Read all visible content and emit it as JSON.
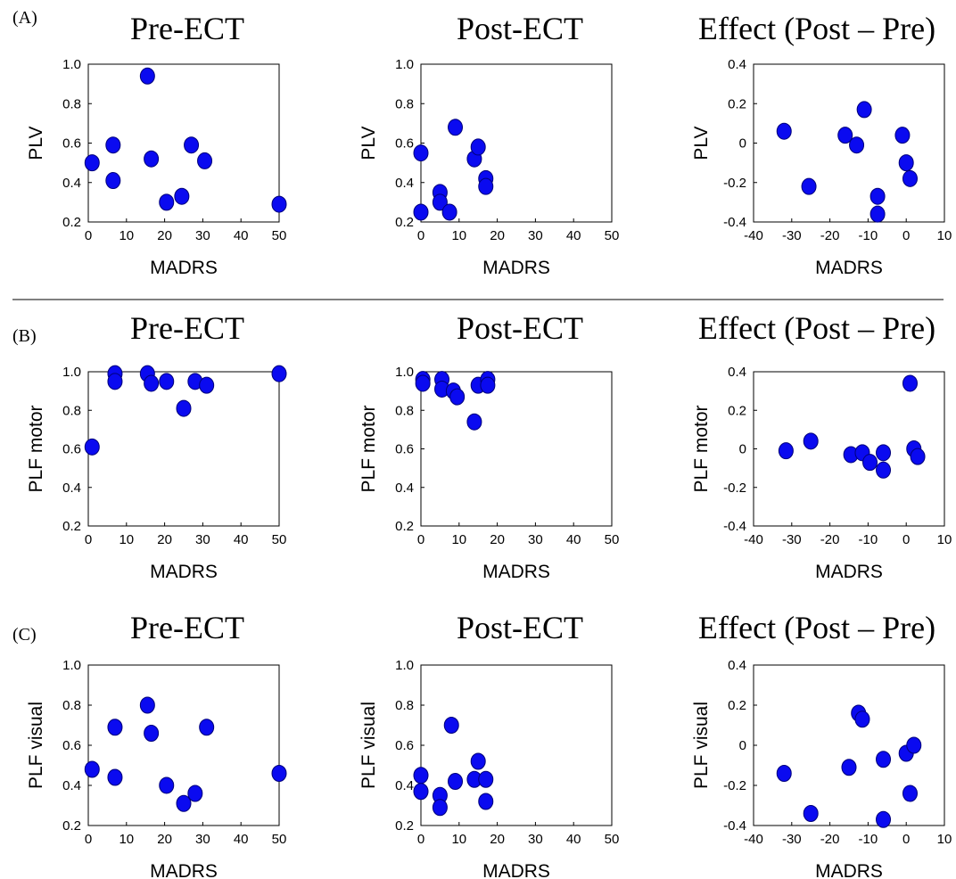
{
  "panel_labels": [
    "(A)",
    "(B)",
    "(C)"
  ],
  "colors": {
    "marker_fill": "#0a0af0",
    "marker_stroke": "#00007a",
    "axis": "#000000",
    "separator": "#000000"
  },
  "chart_data": [
    {
      "type": "scatter",
      "row": "A",
      "col": 0,
      "title": "Pre-ECT",
      "xlabel": "MADRS",
      "ylabel": "PLV",
      "xlim": [
        0,
        50
      ],
      "ylim": [
        0.2,
        1.0
      ],
      "xticks": [
        0,
        10,
        20,
        30,
        40,
        50
      ],
      "yticks": [
        0.2,
        0.4,
        0.6,
        0.8,
        1.0
      ],
      "x": [
        1,
        6.5,
        6.5,
        15.5,
        16.5,
        20.5,
        24.5,
        27,
        30.5,
        50
      ],
      "y": [
        0.5,
        0.59,
        0.41,
        0.94,
        0.52,
        0.3,
        0.33,
        0.59,
        0.51,
        0.29
      ]
    },
    {
      "type": "scatter",
      "row": "A",
      "col": 1,
      "title": "Post-ECT",
      "xlabel": "MADRS",
      "ylabel": "PLV",
      "xlim": [
        0,
        50
      ],
      "ylim": [
        0.2,
        1.0
      ],
      "xticks": [
        0,
        10,
        20,
        30,
        40,
        50
      ],
      "yticks": [
        0.2,
        0.4,
        0.6,
        0.8,
        1.0
      ],
      "x": [
        0,
        0,
        5,
        5,
        7.5,
        9,
        14,
        15,
        17,
        17
      ],
      "y": [
        0.55,
        0.25,
        0.35,
        0.3,
        0.25,
        0.68,
        0.52,
        0.58,
        0.42,
        0.38
      ]
    },
    {
      "type": "scatter",
      "row": "A",
      "col": 2,
      "title": "Effect (Post – Pre)",
      "xlabel": "MADRS",
      "ylabel": "PLV",
      "xlim": [
        -40,
        10
      ],
      "ylim": [
        -0.4,
        0.4
      ],
      "xticks": [
        -40,
        -30,
        -20,
        -10,
        0,
        10
      ],
      "yticks": [
        -0.4,
        -0.2,
        0,
        0.2,
        0.4
      ],
      "x": [
        -32,
        -25.5,
        -16,
        -13,
        -11,
        -7.5,
        -7.5,
        -1,
        0,
        1
      ],
      "y": [
        0.06,
        -0.22,
        0.04,
        -0.01,
        0.17,
        -0.27,
        -0.36,
        0.04,
        -0.1,
        -0.18
      ]
    },
    {
      "type": "scatter",
      "row": "B",
      "col": 0,
      "title": "Pre-ECT",
      "xlabel": "MADRS",
      "ylabel": "PLF motor",
      "xlim": [
        0,
        50
      ],
      "ylim": [
        0.2,
        1.0
      ],
      "xticks": [
        0,
        10,
        20,
        30,
        40,
        50
      ],
      "yticks": [
        0.2,
        0.4,
        0.6,
        0.8,
        1.0
      ],
      "x": [
        1,
        7,
        7,
        15.5,
        16.5,
        20.5,
        25,
        28,
        31,
        50
      ],
      "y": [
        0.61,
        0.99,
        0.95,
        0.99,
        0.94,
        0.95,
        0.81,
        0.95,
        0.93,
        0.99
      ]
    },
    {
      "type": "scatter",
      "row": "B",
      "col": 1,
      "title": "Post-ECT",
      "xlabel": "MADRS",
      "ylabel": "PLF motor",
      "xlim": [
        0,
        50
      ],
      "ylim": [
        0.2,
        1.0
      ],
      "xticks": [
        0,
        10,
        20,
        30,
        40,
        50
      ],
      "yticks": [
        0.2,
        0.4,
        0.6,
        0.8,
        1.0
      ],
      "x": [
        0.5,
        0.5,
        5.5,
        5.5,
        8.5,
        9.5,
        14,
        15,
        17.5,
        17.5
      ],
      "y": [
        0.96,
        0.94,
        0.96,
        0.91,
        0.9,
        0.87,
        0.74,
        0.93,
        0.96,
        0.93
      ]
    },
    {
      "type": "scatter",
      "row": "B",
      "col": 2,
      "title": "Effect (Post – Pre)",
      "xlabel": "MADRS",
      "ylabel": "PLF motor",
      "xlim": [
        -40,
        10
      ],
      "ylim": [
        -0.4,
        0.4
      ],
      "xticks": [
        -40,
        -30,
        -20,
        -10,
        0,
        10
      ],
      "yticks": [
        -0.4,
        -0.2,
        0,
        0.2,
        0.4
      ],
      "x": [
        -31.5,
        -25,
        -14.5,
        -11.5,
        -9.5,
        -6,
        -6,
        1,
        2,
        3
      ],
      "y": [
        -0.01,
        0.04,
        -0.03,
        -0.02,
        -0.07,
        -0.02,
        -0.11,
        0.34,
        0,
        -0.04
      ]
    },
    {
      "type": "scatter",
      "row": "C",
      "col": 0,
      "title": "Pre-ECT",
      "xlabel": "MADRS",
      "ylabel": "PLF visual",
      "xlim": [
        0,
        50
      ],
      "ylim": [
        0.2,
        1.0
      ],
      "xticks": [
        0,
        10,
        20,
        30,
        40,
        50
      ],
      "yticks": [
        0.2,
        0.4,
        0.6,
        0.8,
        1.0
      ],
      "x": [
        1,
        7,
        7,
        15.5,
        16.5,
        20.5,
        25,
        28,
        31,
        50
      ],
      "y": [
        0.48,
        0.69,
        0.44,
        0.8,
        0.66,
        0.4,
        0.31,
        0.36,
        0.69,
        0.46
      ]
    },
    {
      "type": "scatter",
      "row": "C",
      "col": 1,
      "title": "Post-ECT",
      "xlabel": "MADRS",
      "ylabel": "PLF visual",
      "xlim": [
        0,
        50
      ],
      "ylim": [
        0.2,
        1.0
      ],
      "xticks": [
        0,
        10,
        20,
        30,
        40,
        50
      ],
      "yticks": [
        0.2,
        0.4,
        0.6,
        0.8,
        1.0
      ],
      "x": [
        0,
        0,
        5,
        5,
        8,
        9,
        14,
        15,
        17,
        17
      ],
      "y": [
        0.45,
        0.37,
        0.35,
        0.29,
        0.7,
        0.42,
        0.43,
        0.52,
        0.43,
        0.32
      ]
    },
    {
      "type": "scatter",
      "row": "C",
      "col": 2,
      "title": "Effect (Post – Pre)",
      "xlabel": "MADRS",
      "ylabel": "PLF visual",
      "xlim": [
        -40,
        10
      ],
      "ylim": [
        -0.4,
        0.4
      ],
      "xticks": [
        -40,
        -30,
        -20,
        -10,
        0,
        10
      ],
      "yticks": [
        -0.4,
        -0.2,
        0,
        0.2,
        0.4
      ],
      "x": [
        -32,
        -25,
        -15,
        -12.5,
        -11.5,
        -6,
        -6,
        0,
        1,
        2
      ],
      "y": [
        -0.14,
        -0.34,
        -0.11,
        0.16,
        0.13,
        -0.07,
        -0.37,
        -0.04,
        -0.24,
        0
      ]
    }
  ]
}
